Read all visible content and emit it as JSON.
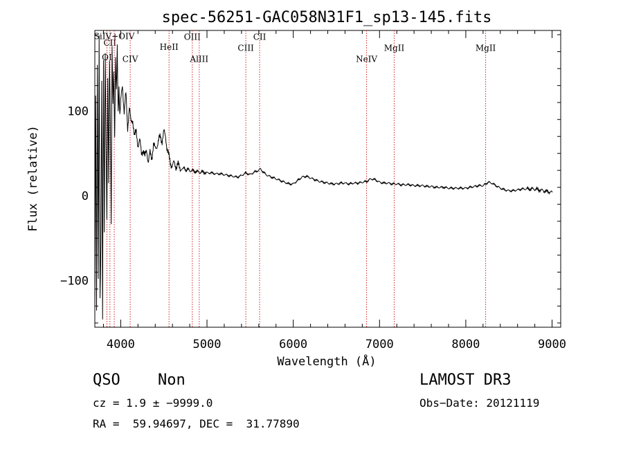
{
  "chart_data": {
    "type": "line",
    "title": "spec-56251-GAC058N31F1_sp13-145.fits",
    "xlabel": "Wavelength (Å)",
    "ylabel": "Flux (relative)",
    "xlim": [
      3700,
      9100
    ],
    "ylim": [
      -155,
      195
    ],
    "xticks": [
      4000,
      5000,
      6000,
      7000,
      8000,
      9000
    ],
    "yticks": [
      -100,
      0,
      100
    ],
    "ytick_labels": [
      "−100",
      "0",
      "100"
    ],
    "emission_lines": [
      {
        "name": "OI",
        "wavelength": 3840,
        "label_y": 160
      },
      {
        "name": "CII",
        "wavelength": 3875,
        "label_y": 177
      },
      {
        "name": "SiIV+OIV",
        "wavelength": 3925,
        "label_y": 185
      },
      {
        "name": "CIV",
        "wavelength": 4110,
        "label_y": 158
      },
      {
        "name": "HeII",
        "wavelength": 4560,
        "label_y": 172
      },
      {
        "name": "OIII",
        "wavelength": 4830,
        "label_y": 184
      },
      {
        "name": "AlIII",
        "wavelength": 4910,
        "label_y": 158
      },
      {
        "name": "CIII",
        "wavelength": 5450,
        "label_y": 171
      },
      {
        "name": "CII",
        "wavelength": 5610,
        "label_y": 184
      },
      {
        "name": "NeIV",
        "wavelength": 6850,
        "label_y": 158
      },
      {
        "name": "MgII",
        "wavelength": 7170,
        "label_y": 171
      },
      {
        "name": "MgII",
        "wavelength": 8230,
        "label_y": 171
      }
    ],
    "series": [
      {
        "name": "flux",
        "x": [
          3700,
          3710,
          3720,
          3730,
          3740,
          3750,
          3760,
          3770,
          3780,
          3790,
          3800,
          3810,
          3820,
          3830,
          3840,
          3850,
          3860,
          3870,
          3880,
          3890,
          3900,
          3910,
          3920,
          3930,
          3940,
          3950,
          3960,
          3970,
          3980,
          3990,
          4000,
          4020,
          4040,
          4060,
          4080,
          4100,
          4120,
          4140,
          4160,
          4180,
          4200,
          4220,
          4240,
          4260,
          4280,
          4300,
          4320,
          4340,
          4360,
          4380,
          4400,
          4420,
          4440,
          4460,
          4480,
          4500,
          4520,
          4540,
          4560,
          4580,
          4600,
          4620,
          4640,
          4660,
          4680,
          4700,
          4720,
          4740,
          4760,
          4780,
          4800,
          4850,
          4900,
          4950,
          5000,
          5050,
          5100,
          5150,
          5200,
          5250,
          5300,
          5350,
          5400,
          5450,
          5500,
          5550,
          5600,
          5620,
          5650,
          5700,
          5750,
          5800,
          5850,
          5900,
          5950,
          6000,
          6050,
          6100,
          6150,
          6200,
          6250,
          6300,
          6350,
          6400,
          6450,
          6500,
          6550,
          6600,
          6650,
          6700,
          6750,
          6800,
          6850,
          6870,
          6900,
          6950,
          7000,
          7050,
          7100,
          7150,
          7200,
          7250,
          7300,
          7350,
          7400,
          7450,
          7500,
          7550,
          7600,
          7650,
          7700,
          7750,
          7800,
          7850,
          7900,
          7950,
          8000,
          8050,
          8100,
          8150,
          8200,
          8230,
          8260,
          8300,
          8350,
          8400,
          8450,
          8500,
          8550,
          8600,
          8650,
          8700,
          8750,
          8800,
          8850,
          8900,
          8950,
          9000
        ],
        "y": [
          -140,
          120,
          -138,
          150,
          -100,
          190,
          -120,
          -60,
          130,
          -150,
          160,
          -40,
          170,
          60,
          -30,
          140,
          20,
          165,
          90,
          -35,
          175,
          110,
          150,
          70,
          160,
          120,
          175,
          100,
          130,
          95,
          110,
          130,
          100,
          120,
          80,
          105,
          85,
          90,
          70,
          75,
          60,
          65,
          50,
          55,
          45,
          55,
          40,
          50,
          45,
          60,
          55,
          60,
          65,
          70,
          65,
          75,
          70,
          55,
          45,
          38,
          36,
          38,
          35,
          37,
          33,
          32,
          31,
          33,
          30,
          31,
          30,
          29,
          28,
          28,
          27,
          27,
          26,
          26,
          25,
          24,
          23,
          22,
          24,
          27,
          25,
          28,
          30,
          32,
          28,
          24,
          22,
          20,
          18,
          16,
          14,
          14,
          18,
          22,
          23,
          21,
          19,
          17,
          16,
          15,
          14,
          14,
          15,
          15,
          14,
          15,
          15,
          16,
          17,
          18,
          20,
          19,
          16,
          15,
          15,
          14,
          14,
          13,
          13,
          13,
          12,
          12,
          12,
          11,
          11,
          10,
          10,
          10,
          9,
          9,
          9,
          9,
          9,
          10,
          11,
          12,
          12,
          14,
          16,
          15,
          12,
          9,
          7,
          6,
          6,
          7,
          8,
          8,
          8,
          8,
          7,
          6,
          5,
          4
        ]
      }
    ]
  },
  "info": {
    "object_class": "QSO",
    "subclass": "Non",
    "survey": "LAMOST DR3",
    "redshift": "cz = 1.9 ± −9999.0",
    "obs_date": "Obs−Date: 20121119",
    "coords": "RA =  59.94697, DEC =  31.77890"
  },
  "colors": {
    "spectrum": "#000000",
    "emission_line": "#cc2222",
    "axis": "#000000"
  }
}
